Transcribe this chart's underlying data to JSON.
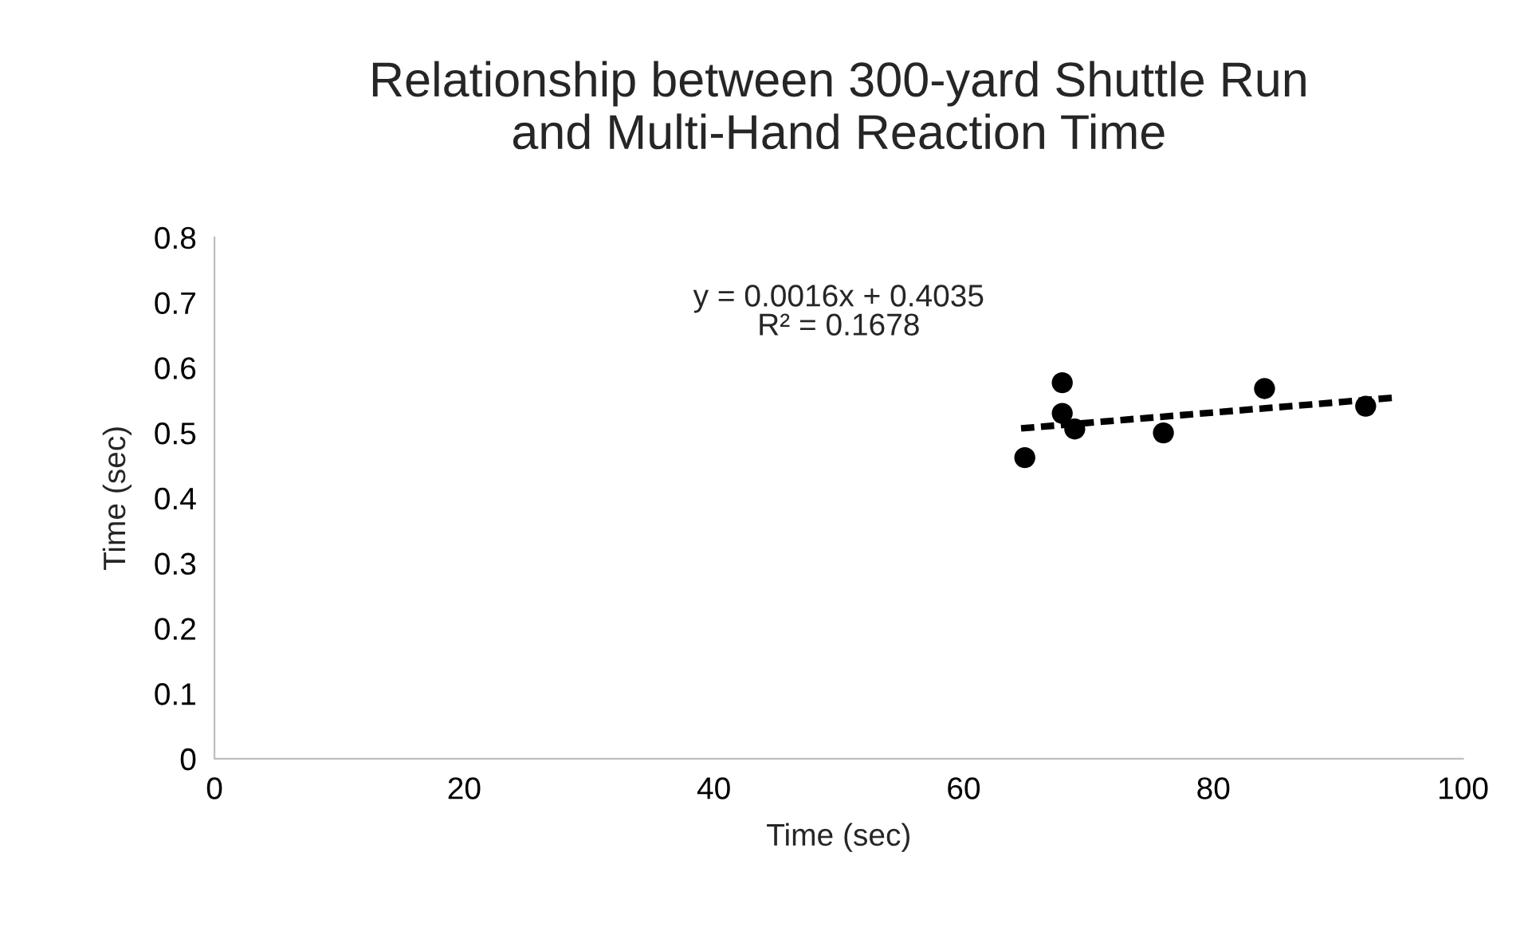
{
  "chart_data": {
    "type": "scatter",
    "title": "Relationship between 300-yard Shuttle Run\nand Multi-Hand Reaction Time",
    "xlabel": "Time (sec)",
    "ylabel": "Time (sec)",
    "xlim": [
      0,
      100
    ],
    "xticks": [
      0,
      20,
      40,
      60,
      80,
      100
    ],
    "ylim": [
      0,
      0.8
    ],
    "yticks": [
      0,
      0.1,
      0.2,
      0.3,
      0.4,
      0.5,
      0.6,
      0.7,
      0.8
    ],
    "grid": false,
    "legend": false,
    "series": [
      {
        "marker": "circle",
        "color": "#000000",
        "x": [
          64.9,
          67.9,
          67.9,
          68.9,
          76.0,
          84.1,
          92.2
        ],
        "values": [
          0.462,
          0.577,
          0.53,
          0.506,
          0.5,
          0.568,
          0.541
        ]
      },
      {
        "type": "line",
        "marker": "none",
        "color": "#000000",
        "line_style": "dashed",
        "x": [
          64.6,
          94.4
        ],
        "values": [
          0.507,
          0.554
        ]
      }
    ],
    "annotations": [
      "y = 0.0016x + 0.4035\nR² = 0.1678"
    ]
  }
}
